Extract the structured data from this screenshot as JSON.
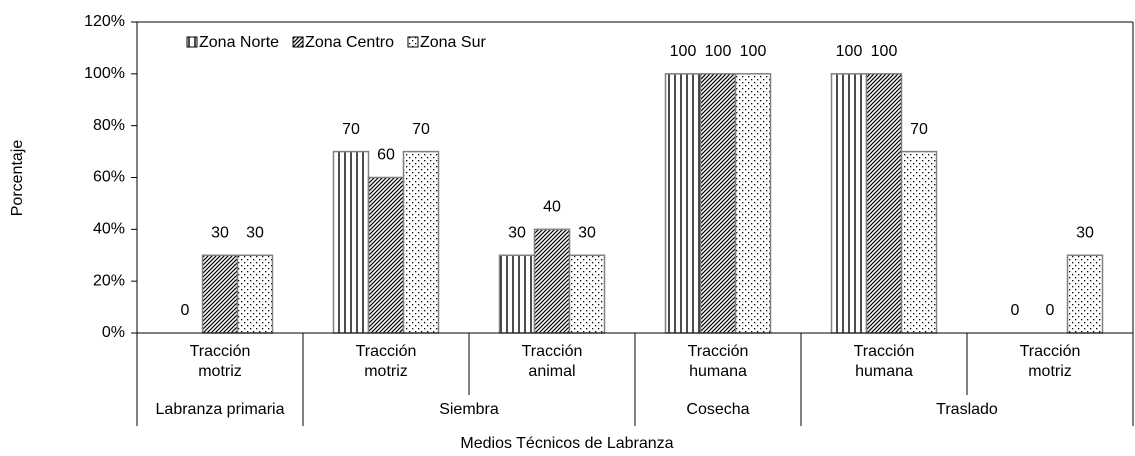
{
  "chart_data": {
    "type": "bar",
    "xlabel": "Medios Técnicos de Labranza",
    "ylabel": "Porcentaje",
    "categories": [
      [
        "Tracción",
        "motriz"
      ],
      [
        "Tracción",
        "motriz"
      ],
      [
        "Tracción",
        "animal"
      ],
      [
        "Tracción",
        "humana"
      ],
      [
        "Tracción",
        "humana"
      ],
      [
        "Tracción",
        "motriz"
      ]
    ],
    "groups": [
      {
        "label": "Labranza primaria",
        "span": 1
      },
      {
        "label": "Siembra",
        "span": 2
      },
      {
        "label": "Cosecha",
        "span": 1
      },
      {
        "label": "Traslado",
        "span": 2
      }
    ],
    "series": [
      {
        "name": "Zona Norte",
        "color": "#000000",
        "pattern": "vertical",
        "values": [
          0,
          70,
          30,
          100,
          100,
          0
        ]
      },
      {
        "name": "Zona Centro",
        "color": "#000000",
        "pattern": "diagonal",
        "values": [
          30,
          60,
          40,
          100,
          100,
          0
        ]
      },
      {
        "name": "Zona Sur",
        "color": "#000000",
        "pattern": "dots",
        "values": [
          30,
          70,
          30,
          100,
          70,
          30
        ]
      }
    ],
    "ylim": [
      0,
      120
    ],
    "yticks": [
      {
        "value": 0,
        "label": "0%"
      },
      {
        "value": 20,
        "label": "20%"
      },
      {
        "value": 40,
        "label": "40%"
      },
      {
        "value": 60,
        "label": "60%"
      },
      {
        "value": 80,
        "label": "80%"
      },
      {
        "value": 100,
        "label": "100%"
      },
      {
        "value": 120,
        "label": "120%"
      }
    ],
    "legend": "top-left",
    "data_labels": true
  }
}
